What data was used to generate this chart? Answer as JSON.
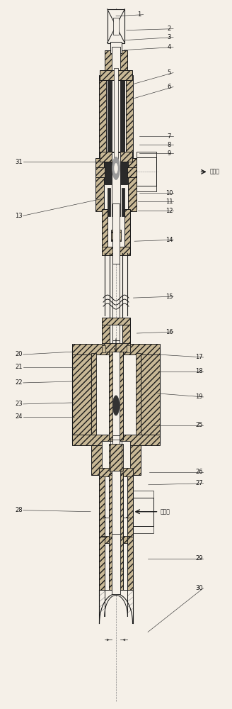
{
  "bg_color": "#f5f0e8",
  "line_color": "#1a1a1a",
  "hatch_fc": "#c8b896",
  "white_fc": "#f5f0e8",
  "dark_fc": "#2a2a2a",
  "mid_fc": "#888070",
  "text_out": "出水口",
  "text_in": "进水口",
  "labels": [
    [
      1,
      0.6,
      0.98,
      0.5,
      0.978
    ],
    [
      2,
      0.73,
      0.96,
      0.545,
      0.958
    ],
    [
      3,
      0.73,
      0.948,
      0.54,
      0.944
    ],
    [
      4,
      0.73,
      0.934,
      0.535,
      0.93
    ],
    [
      5,
      0.73,
      0.898,
      0.575,
      0.882
    ],
    [
      6,
      0.73,
      0.878,
      0.58,
      0.862
    ],
    [
      7,
      0.73,
      0.808,
      0.6,
      0.808
    ],
    [
      8,
      0.73,
      0.796,
      0.6,
      0.796
    ],
    [
      9,
      0.73,
      0.784,
      0.6,
      0.784
    ],
    [
      10,
      0.73,
      0.728,
      0.6,
      0.728
    ],
    [
      11,
      0.73,
      0.716,
      0.596,
      0.716
    ],
    [
      12,
      0.73,
      0.703,
      0.596,
      0.703
    ],
    [
      13,
      0.08,
      0.696,
      0.44,
      0.72
    ],
    [
      14,
      0.73,
      0.662,
      0.58,
      0.66
    ],
    [
      15,
      0.73,
      0.582,
      0.575,
      0.58
    ],
    [
      16,
      0.73,
      0.532,
      0.59,
      0.53
    ],
    [
      17,
      0.86,
      0.496,
      0.68,
      0.5
    ],
    [
      18,
      0.86,
      0.476,
      0.68,
      0.476
    ],
    [
      19,
      0.86,
      0.44,
      0.68,
      0.445
    ],
    [
      20,
      0.08,
      0.5,
      0.32,
      0.504
    ],
    [
      21,
      0.08,
      0.482,
      0.318,
      0.482
    ],
    [
      22,
      0.08,
      0.46,
      0.318,
      0.462
    ],
    [
      23,
      0.08,
      0.43,
      0.318,
      0.432
    ],
    [
      24,
      0.08,
      0.412,
      0.318,
      0.412
    ],
    [
      25,
      0.86,
      0.4,
      0.66,
      0.4
    ],
    [
      26,
      0.86,
      0.334,
      0.645,
      0.334
    ],
    [
      27,
      0.86,
      0.318,
      0.64,
      0.316
    ],
    [
      28,
      0.08,
      0.28,
      0.39,
      0.278
    ],
    [
      29,
      0.86,
      0.212,
      0.638,
      0.212
    ],
    [
      30,
      0.86,
      0.17,
      0.638,
      0.108
    ],
    [
      31,
      0.08,
      0.772,
      0.44,
      0.772
    ]
  ]
}
